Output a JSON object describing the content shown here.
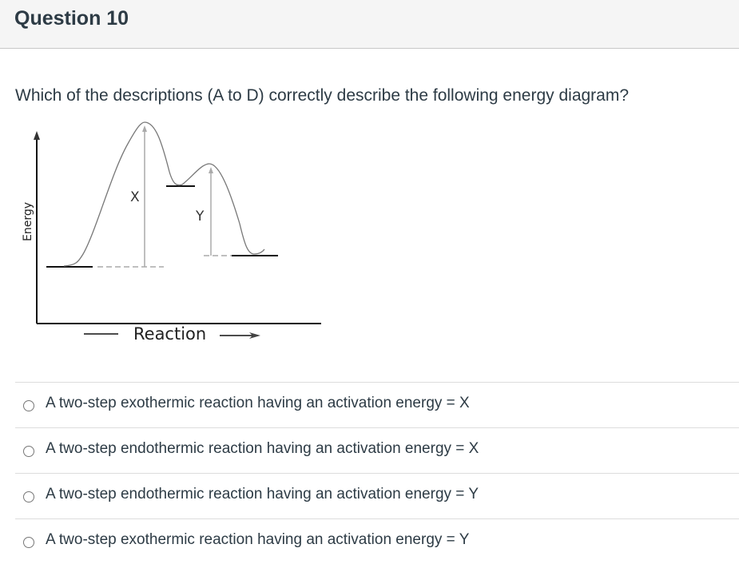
{
  "header": {
    "title": "Question 10"
  },
  "question": {
    "text": "Which of the descriptions (A to D) correctly describe the following energy diagram?"
  },
  "diagram": {
    "y_label": "Energy",
    "x_label": "Reaction",
    "label_x": "X",
    "label_y": "Y"
  },
  "options": [
    {
      "label": "A two-step exothermic reaction having an activation energy = X"
    },
    {
      "label": "A two-step endothermic reaction having an activation energy = X"
    },
    {
      "label": "A two-step endothermic reaction having an activation energy = Y"
    },
    {
      "label": "A two-step exothermic reaction having an activation energy = Y"
    }
  ]
}
